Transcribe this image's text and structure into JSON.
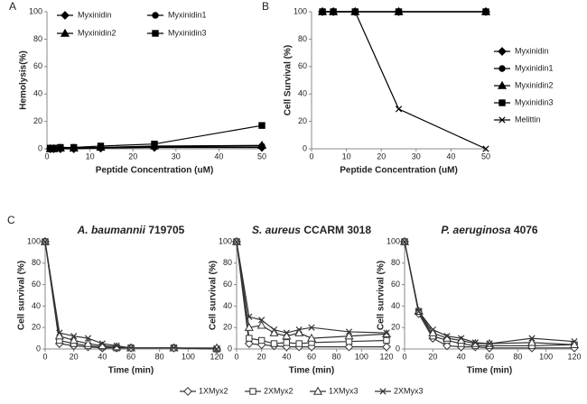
{
  "chart_data": [
    {
      "type": "line",
      "panel_label": "A",
      "xlabel": "Peptide Concentration (uM)",
      "ylabel": "Hemolysis(%)",
      "x": [
        0.78,
        1.56,
        3.125,
        6.25,
        12.5,
        25,
        50
      ],
      "xlim": [
        0,
        50
      ],
      "xticks": [
        0,
        10,
        20,
        30,
        40,
        50
      ],
      "ylim": [
        0,
        100
      ],
      "yticks": [
        0,
        20,
        40,
        60,
        80,
        100
      ],
      "legend": "top",
      "series": [
        {
          "name": "Myxinidin",
          "color": "#000000",
          "marker": "diamond",
          "values": [
            0,
            0,
            0,
            0,
            0.5,
            1,
            1
          ]
        },
        {
          "name": "Myxinidin1",
          "color": "#000000",
          "marker": "circle",
          "values": [
            0.5,
            0.5,
            0.5,
            0.5,
            1,
            1.5,
            2
          ]
        },
        {
          "name": "Myxinidin2",
          "color": "#000000",
          "marker": "triangle",
          "values": [
            0,
            0,
            0.5,
            0.5,
            1,
            2,
            2.5
          ]
        },
        {
          "name": "Myxinidin3",
          "color": "#000000",
          "marker": "square",
          "values": [
            0.5,
            0.5,
            1,
            1,
            2,
            3.5,
            17
          ]
        }
      ]
    },
    {
      "type": "line",
      "panel_label": "B",
      "xlabel": "Peptide Concentration (uM)",
      "ylabel": "Cell Survival (%)",
      "x": [
        3.125,
        6.25,
        12.5,
        25,
        50
      ],
      "xlim": [
        0,
        50
      ],
      "xticks": [
        0,
        10,
        20,
        30,
        40,
        50
      ],
      "ylim": [
        0,
        100
      ],
      "yticks": [
        0,
        20,
        40,
        60,
        80,
        100
      ],
      "legend": "right",
      "series": [
        {
          "name": "Myxinidin",
          "color": "#000000",
          "marker": "diamond",
          "values": [
            100,
            100,
            100,
            100,
            100
          ]
        },
        {
          "name": "Myxinidin1",
          "color": "#000000",
          "marker": "circle",
          "values": [
            100,
            100,
            100,
            100,
            100
          ]
        },
        {
          "name": "Myxinidin2",
          "color": "#000000",
          "marker": "triangle",
          "values": [
            100,
            100,
            100,
            100,
            100
          ]
        },
        {
          "name": "Myxinidin3",
          "color": "#000000",
          "marker": "square",
          "values": [
            100,
            100,
            100,
            100,
            100
          ]
        },
        {
          "name": "Melittin",
          "color": "#000000",
          "marker": "x",
          "values": [
            100,
            100,
            100,
            29,
            0
          ]
        }
      ]
    },
    {
      "type": "line",
      "panel_label": "C",
      "title_italic": "A. baumannii",
      "title_rest": "719705",
      "xlabel": "Time (min)",
      "ylabel": "Cell survival (%)",
      "x": [
        0,
        10,
        20,
        30,
        40,
        50,
        60,
        90,
        120
      ],
      "xlim": [
        0,
        120
      ],
      "xticks": [
        0,
        20,
        40,
        60,
        80,
        100,
        120
      ],
      "ylim": [
        0,
        100
      ],
      "yticks": [
        0,
        20,
        40,
        60,
        80,
        100
      ],
      "legend": "bottom",
      "series": [
        {
          "name": "1XMyx2",
          "color": "#333333",
          "marker": "open-diamond",
          "values": [
            100,
            5,
            3,
            2,
            1,
            1,
            1,
            1,
            0
          ]
        },
        {
          "name": "2XMyx2",
          "color": "#333333",
          "marker": "open-square",
          "values": [
            100,
            8,
            5,
            3,
            2,
            1,
            1,
            1,
            0
          ]
        },
        {
          "name": "1XMyx3",
          "color": "#333333",
          "marker": "open-triangle",
          "values": [
            100,
            12,
            8,
            5,
            3,
            2,
            1,
            1,
            1
          ]
        },
        {
          "name": "2XMyx3",
          "color": "#333333",
          "marker": "x",
          "values": [
            100,
            15,
            12,
            10,
            5,
            3,
            1,
            1,
            0
          ]
        }
      ]
    },
    {
      "type": "line",
      "title_italic": "S. aureus",
      "title_rest": "CCARM 3018",
      "xlabel": "Time (min)",
      "ylabel": "Cell survival (%)",
      "x": [
        0,
        10,
        20,
        30,
        40,
        50,
        60,
        90,
        120
      ],
      "xlim": [
        0,
        120
      ],
      "xticks": [
        0,
        20,
        40,
        60,
        80,
        100,
        120
      ],
      "ylim": [
        0,
        100
      ],
      "yticks": [
        0,
        20,
        40,
        60,
        80,
        100
      ],
      "legend": "none",
      "series": [
        {
          "color": "#333333",
          "marker": "open-diamond",
          "values": [
            100,
            5,
            4,
            3,
            2,
            2,
            2,
            2,
            2
          ]
        },
        {
          "color": "#333333",
          "marker": "open-square",
          "values": [
            100,
            10,
            8,
            5,
            6,
            5,
            6,
            7,
            8
          ]
        },
        {
          "color": "#333333",
          "marker": "open-triangle",
          "values": [
            100,
            20,
            22,
            15,
            12,
            15,
            10,
            12,
            14
          ]
        },
        {
          "color": "#333333",
          "marker": "x",
          "values": [
            100,
            30,
            27,
            18,
            15,
            18,
            20,
            16,
            15
          ]
        }
      ]
    },
    {
      "type": "line",
      "title_italic": "P. aeruginosa",
      "title_rest": "4076",
      "xlabel": "Time (min)",
      "ylabel": "Cell survival (%)",
      "x": [
        0,
        10,
        20,
        30,
        40,
        50,
        60,
        90,
        120
      ],
      "xlim": [
        0,
        120
      ],
      "xticks": [
        0,
        20,
        40,
        60,
        80,
        100,
        120
      ],
      "ylim": [
        0,
        100
      ],
      "yticks": [
        0,
        20,
        40,
        60,
        80,
        100
      ],
      "legend": "none",
      "series": [
        {
          "color": "#333333",
          "marker": "open-diamond",
          "values": [
            100,
            33,
            10,
            3,
            2,
            2,
            1,
            1,
            1
          ]
        },
        {
          "color": "#333333",
          "marker": "open-square",
          "values": [
            100,
            35,
            12,
            8,
            5,
            3,
            3,
            3,
            4
          ]
        },
        {
          "color": "#333333",
          "marker": "open-triangle",
          "values": [
            100,
            35,
            15,
            10,
            8,
            5,
            5,
            6,
            4
          ]
        },
        {
          "color": "#333333",
          "marker": "x",
          "values": [
            100,
            35,
            18,
            12,
            10,
            6,
            5,
            10,
            7
          ]
        }
      ]
    }
  ]
}
